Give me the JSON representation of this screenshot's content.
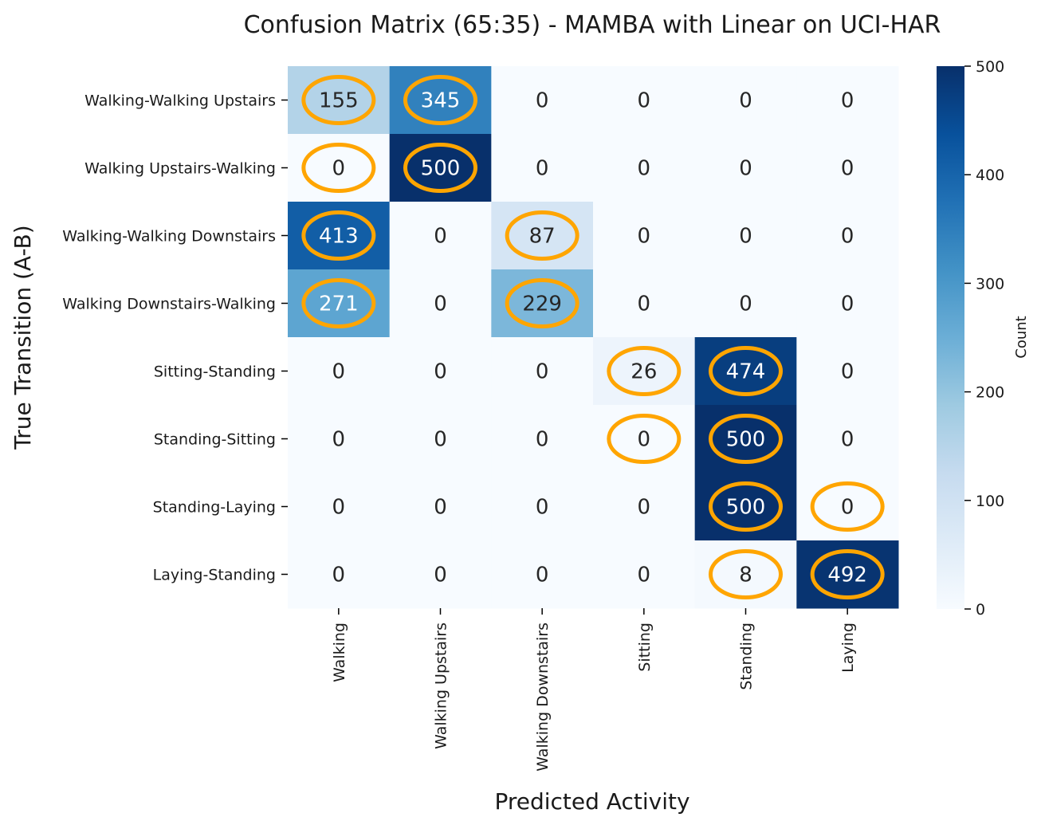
{
  "chart_data": {
    "type": "heatmap",
    "title": "Confusion Matrix (65:35) - MAMBA with Linear on UCI-HAR",
    "xlabel": "Predicted Activity",
    "ylabel": "True Transition (A-B)",
    "x_categories": [
      "Walking",
      "Walking Upstairs",
      "Walking Downstairs",
      "Sitting",
      "Standing",
      "Laying"
    ],
    "y_categories": [
      "Walking-Walking Upstairs",
      "Walking Upstairs-Walking",
      "Walking-Walking Downstairs",
      "Walking Downstairs-Walking",
      "Sitting-Standing",
      "Standing-Sitting",
      "Standing-Laying",
      "Laying-Standing"
    ],
    "values": [
      [
        155,
        345,
        0,
        0,
        0,
        0
      ],
      [
        0,
        500,
        0,
        0,
        0,
        0
      ],
      [
        413,
        0,
        87,
        0,
        0,
        0
      ],
      [
        271,
        0,
        229,
        0,
        0,
        0
      ],
      [
        0,
        0,
        0,
        26,
        474,
        0
      ],
      [
        0,
        0,
        0,
        0,
        500,
        0
      ],
      [
        0,
        0,
        0,
        0,
        500,
        0
      ],
      [
        0,
        0,
        0,
        0,
        8,
        492
      ]
    ],
    "highlighted_cells": [
      [
        0,
        0
      ],
      [
        0,
        1
      ],
      [
        1,
        0
      ],
      [
        1,
        1
      ],
      [
        2,
        0
      ],
      [
        2,
        2
      ],
      [
        3,
        0
      ],
      [
        3,
        2
      ],
      [
        4,
        3
      ],
      [
        4,
        4
      ],
      [
        5,
        3
      ],
      [
        5,
        4
      ],
      [
        6,
        4
      ],
      [
        6,
        5
      ],
      [
        7,
        4
      ],
      [
        7,
        5
      ]
    ],
    "highlight_color": "#FFA500",
    "colormap": "Blues",
    "colorbar": {
      "label": "Count",
      "range": [
        0,
        500
      ],
      "ticks": [
        0,
        100,
        200,
        300,
        400,
        500
      ]
    }
  }
}
